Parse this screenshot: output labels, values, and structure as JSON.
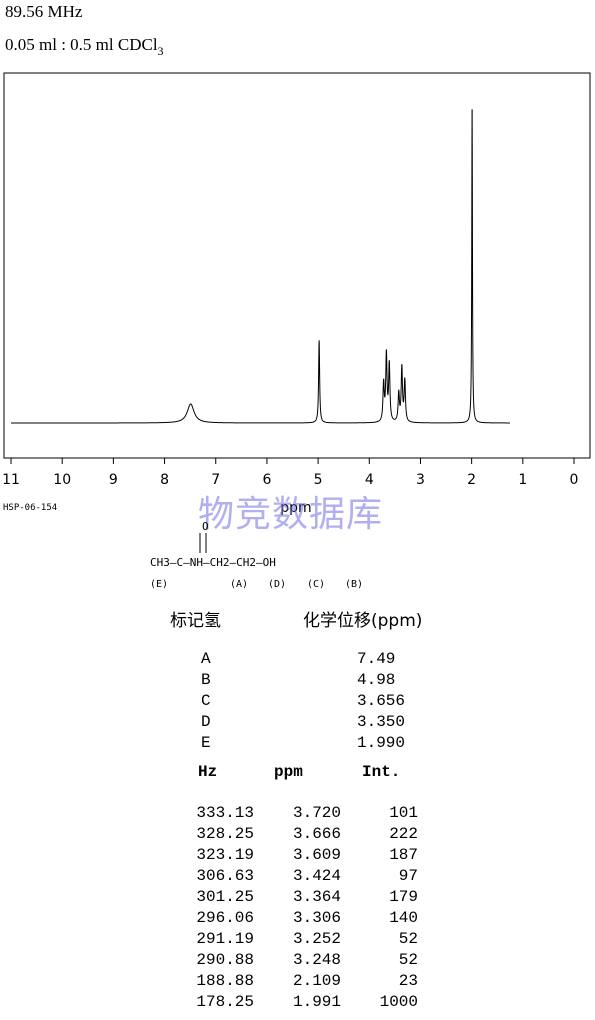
{
  "header": {
    "frequency": "89.56 MHz",
    "solvent": "0.05 ml : 0.5 ml CDCl",
    "solvent_sub": "3"
  },
  "chart_data": {
    "type": "line",
    "xlabel": "ppm",
    "xlim": [
      11,
      0
    ],
    "x_ticks": [
      "11",
      "10",
      "9",
      "8",
      "7",
      "6",
      "5",
      "4",
      "3",
      "2",
      "1",
      "0"
    ],
    "baseline_range_ppm": [
      11.0,
      1.25
    ],
    "peaks": [
      {
        "ppm": 7.49,
        "height": 0.06,
        "width": 0.08
      },
      {
        "ppm": 4.98,
        "height": 0.26,
        "width": 0.012
      },
      {
        "ppm": 3.72,
        "height": 0.12,
        "width": 0.015
      },
      {
        "ppm": 3.666,
        "height": 0.21,
        "width": 0.015
      },
      {
        "ppm": 3.609,
        "height": 0.18,
        "width": 0.015
      },
      {
        "ppm": 3.424,
        "height": 0.09,
        "width": 0.015
      },
      {
        "ppm": 3.364,
        "height": 0.17,
        "width": 0.015
      },
      {
        "ppm": 3.306,
        "height": 0.13,
        "width": 0.015
      },
      {
        "ppm": 1.991,
        "height": 1.0,
        "width": 0.008
      }
    ]
  },
  "sample_code": "HSP-06-154",
  "watermark": "物竞数据库",
  "structure": {
    "o_label": "O",
    "chain": "CH3—C—NH—CH2—CH2—OH",
    "letters": [
      "(E)",
      "(A)",
      "(D)",
      "(C)",
      "(B)"
    ]
  },
  "assign_headers": [
    "标记氢",
    "化学位移(ppm)"
  ],
  "assignments": [
    {
      "label": "A",
      "shift": "7.49"
    },
    {
      "label": "B",
      "shift": "4.98"
    },
    {
      "label": "C",
      "shift": "3.656"
    },
    {
      "label": "D",
      "shift": "3.350"
    },
    {
      "label": "E",
      "shift": "1.990"
    }
  ],
  "peak_table": {
    "headers": [
      "Hz",
      "ppm",
      "Int."
    ],
    "rows": [
      [
        "333.13",
        "3.720",
        "101"
      ],
      [
        "328.25",
        "3.666",
        "222"
      ],
      [
        "323.19",
        "3.609",
        "187"
      ],
      [
        "306.63",
        "3.424",
        "97"
      ],
      [
        "301.25",
        "3.364",
        "179"
      ],
      [
        "296.06",
        "3.306",
        "140"
      ],
      [
        "291.19",
        "3.252",
        "52"
      ],
      [
        "290.88",
        "3.248",
        "52"
      ],
      [
        "188.88",
        "2.109",
        "23"
      ],
      [
        "178.25",
        "1.991",
        "1000"
      ]
    ]
  }
}
